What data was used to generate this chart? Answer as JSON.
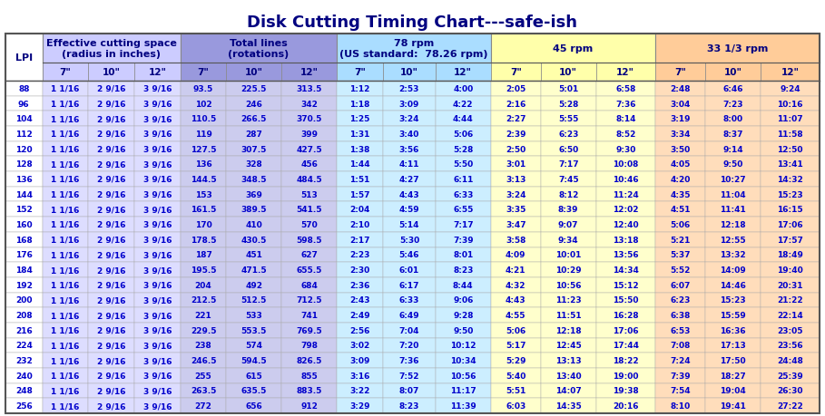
{
  "title": "Disk Cutting Timing Chart---safe-ish",
  "title_color": "#000080",
  "title_fontsize": 13,
  "groups": [
    {
      "label": "Effective cutting space\n(radius in inches)",
      "span": 3,
      "color": "#ccccff",
      "sub_color": "#ccccff"
    },
    {
      "label": "Total lines\n(rotations)",
      "span": 3,
      "color": "#9999dd",
      "sub_color": "#9999dd"
    },
    {
      "label": "78 rpm\n(US standard:  78.26 rpm)",
      "span": 3,
      "color": "#aaddff",
      "sub_color": "#aaddff"
    },
    {
      "label": "45 rpm",
      "span": 3,
      "color": "#ffffaa",
      "sub_color": "#ffffaa"
    },
    {
      "label": "33 1/3 rpm",
      "span": 3,
      "color": "#ffcc99",
      "sub_color": "#ffcc99"
    }
  ],
  "col_colors": [
    "#ffffff",
    "#ddddff",
    "#ddddff",
    "#ddddff",
    "#ccccee",
    "#ccccee",
    "#ccccee",
    "#cceeff",
    "#cceeff",
    "#cceeff",
    "#ffffcc",
    "#ffffcc",
    "#ffffcc",
    "#ffddbb",
    "#ffddbb",
    "#ffddbb"
  ],
  "rows": [
    [
      88,
      "1 1/16",
      "2 9/16",
      "3 9/16",
      "93.5",
      "225.5",
      "313.5",
      "1:12",
      "2:53",
      "4:00",
      "2:05",
      "5:01",
      "6:58",
      "2:48",
      "6:46",
      "9:24"
    ],
    [
      96,
      "1 1/16",
      "2 9/16",
      "3 9/16",
      "102",
      "246",
      "342",
      "1:18",
      "3:09",
      "4:22",
      "2:16",
      "5:28",
      "7:36",
      "3:04",
      "7:23",
      "10:16"
    ],
    [
      104,
      "1 1/16",
      "2 9/16",
      "3 9/16",
      "110.5",
      "266.5",
      "370.5",
      "1:25",
      "3:24",
      "4:44",
      "2:27",
      "5:55",
      "8:14",
      "3:19",
      "8:00",
      "11:07"
    ],
    [
      112,
      "1 1/16",
      "2 9/16",
      "3 9/16",
      "119",
      "287",
      "399",
      "1:31",
      "3:40",
      "5:06",
      "2:39",
      "6:23",
      "8:52",
      "3:34",
      "8:37",
      "11:58"
    ],
    [
      120,
      "1 1/16",
      "2 9/16",
      "3 9/16",
      "127.5",
      "307.5",
      "427.5",
      "1:38",
      "3:56",
      "5:28",
      "2:50",
      "6:50",
      "9:30",
      "3:50",
      "9:14",
      "12:50"
    ],
    [
      128,
      "1 1/16",
      "2 9/16",
      "3 9/16",
      "136",
      "328",
      "456",
      "1:44",
      "4:11",
      "5:50",
      "3:01",
      "7:17",
      "10:08",
      "4:05",
      "9:50",
      "13:41"
    ],
    [
      136,
      "1 1/16",
      "2 9/16",
      "3 9/16",
      "144.5",
      "348.5",
      "484.5",
      "1:51",
      "4:27",
      "6:11",
      "3:13",
      "7:45",
      "10:46",
      "4:20",
      "10:27",
      "14:32"
    ],
    [
      144,
      "1 1/16",
      "2 9/16",
      "3 9/16",
      "153",
      "369",
      "513",
      "1:57",
      "4:43",
      "6:33",
      "3:24",
      "8:12",
      "11:24",
      "4:35",
      "11:04",
      "15:23"
    ],
    [
      152,
      "1 1/16",
      "2 9/16",
      "3 9/16",
      "161.5",
      "389.5",
      "541.5",
      "2:04",
      "4:59",
      "6:55",
      "3:35",
      "8:39",
      "12:02",
      "4:51",
      "11:41",
      "16:15"
    ],
    [
      160,
      "1 1/16",
      "2 9/16",
      "3 9/16",
      "170",
      "410",
      "570",
      "2:10",
      "5:14",
      "7:17",
      "3:47",
      "9:07",
      "12:40",
      "5:06",
      "12:18",
      "17:06"
    ],
    [
      168,
      "1 1/16",
      "2 9/16",
      "3 9/16",
      "178.5",
      "430.5",
      "598.5",
      "2:17",
      "5:30",
      "7:39",
      "3:58",
      "9:34",
      "13:18",
      "5:21",
      "12:55",
      "17:57"
    ],
    [
      176,
      "1 1/16",
      "2 9/16",
      "3 9/16",
      "187",
      "451",
      "627",
      "2:23",
      "5:46",
      "8:01",
      "4:09",
      "10:01",
      "13:56",
      "5:37",
      "13:32",
      "18:49"
    ],
    [
      184,
      "1 1/16",
      "2 9/16",
      "3 9/16",
      "195.5",
      "471.5",
      "655.5",
      "2:30",
      "6:01",
      "8:23",
      "4:21",
      "10:29",
      "14:34",
      "5:52",
      "14:09",
      "19:40"
    ],
    [
      192,
      "1 1/16",
      "2 9/16",
      "3 9/16",
      "204",
      "492",
      "684",
      "2:36",
      "6:17",
      "8:44",
      "4:32",
      "10:56",
      "15:12",
      "6:07",
      "14:46",
      "20:31"
    ],
    [
      200,
      "1 1/16",
      "2 9/16",
      "3 9/16",
      "212.5",
      "512.5",
      "712.5",
      "2:43",
      "6:33",
      "9:06",
      "4:43",
      "11:23",
      "15:50",
      "6:23",
      "15:23",
      "21:22"
    ],
    [
      208,
      "1 1/16",
      "2 9/16",
      "3 9/16",
      "221",
      "533",
      "741",
      "2:49",
      "6:49",
      "9:28",
      "4:55",
      "11:51",
      "16:28",
      "6:38",
      "15:59",
      "22:14"
    ],
    [
      216,
      "1 1/16",
      "2 9/16",
      "3 9/16",
      "229.5",
      "553.5",
      "769.5",
      "2:56",
      "7:04",
      "9:50",
      "5:06",
      "12:18",
      "17:06",
      "6:53",
      "16:36",
      "23:05"
    ],
    [
      224,
      "1 1/16",
      "2 9/16",
      "3 9/16",
      "238",
      "574",
      "798",
      "3:02",
      "7:20",
      "10:12",
      "5:17",
      "12:45",
      "17:44",
      "7:08",
      "17:13",
      "23:56"
    ],
    [
      232,
      "1 1/16",
      "2 9/16",
      "3 9/16",
      "246.5",
      "594.5",
      "826.5",
      "3:09",
      "7:36",
      "10:34",
      "5:29",
      "13:13",
      "18:22",
      "7:24",
      "17:50",
      "24:48"
    ],
    [
      240,
      "1 1/16",
      "2 9/16",
      "3 9/16",
      "255",
      "615",
      "855",
      "3:16",
      "7:52",
      "10:56",
      "5:40",
      "13:40",
      "19:00",
      "7:39",
      "18:27",
      "25:39"
    ],
    [
      248,
      "1 1/16",
      "2 9/16",
      "3 9/16",
      "263.5",
      "635.5",
      "883.5",
      "3:22",
      "8:07",
      "11:17",
      "5:51",
      "14:07",
      "19:38",
      "7:54",
      "19:04",
      "26:30"
    ],
    [
      256,
      "1 1/16",
      "2 9/16",
      "3 9/16",
      "272",
      "656",
      "912",
      "3:29",
      "8:23",
      "11:39",
      "6:03",
      "14:35",
      "20:16",
      "8:10",
      "19:41",
      "27:22"
    ]
  ],
  "text_color": "#0000cc",
  "header_text_color": "#000080",
  "bg_color": "#ffffff"
}
